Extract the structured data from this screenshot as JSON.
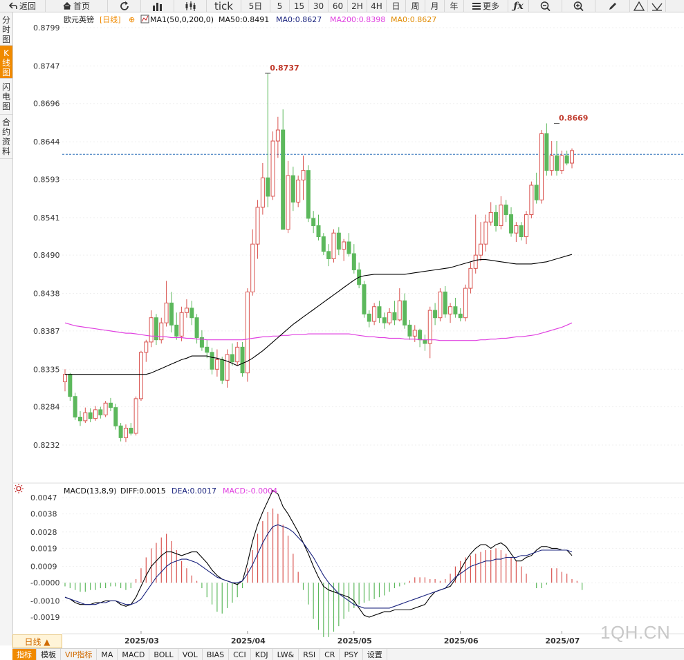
{
  "toolbar": {
    "back_label": "返回",
    "home_label": "首页",
    "tick_label": "tick",
    "five_day_label": "5日",
    "periods": [
      "5",
      "15",
      "30",
      "60",
      "2H",
      "4H",
      "日",
      "周",
      "月",
      "年"
    ],
    "more_label": "更多"
  },
  "sidebar": {
    "tabs": [
      "分时图",
      "K线图",
      "闪电图",
      "合约资料"
    ],
    "active_index": 1
  },
  "header": {
    "symbol": "欧元英镑",
    "period_tag": "[日线]",
    "ma_label": "MA1(50,0,200,0)",
    "ma50": "MA50:0.8491",
    "ma0_a": "MA0:0.8627",
    "ma200": "MA200:0.8398",
    "ma0_b": "MA0:0.8627"
  },
  "macd_header": {
    "label": "MACD(13,8,9)",
    "diff": "DIFF:0.0015",
    "dea": "DEA:0.0017",
    "macd": "MACD:-0.0004"
  },
  "period_bar": {
    "label": "日线 ▲"
  },
  "bottom_tabs": [
    "指标",
    "模板",
    "VIP指标",
    "MA",
    "MACD",
    "BOLL",
    "VOL",
    "BIAS",
    "CCI",
    "KDJ",
    "LW&",
    "RSI",
    "CR",
    "PSY",
    "设置"
  ],
  "bottom_active_index": 0,
  "bottom_vip_index": 2,
  "watermark": "1QH.CN",
  "colors": {
    "up": "#d9534f",
    "down": "#5cb85c",
    "ma50": "#000000",
    "ma200": "#e040e0",
    "diff": "#000000",
    "dea": "#1a237e",
    "dashed": "#2a6fb8",
    "accent": "#f08a00"
  },
  "chart_data": [
    {
      "type": "candlestick",
      "title": "欧元英镑 [日线]",
      "y_ticks": [
        "0.8799",
        "0.8747",
        "0.8696",
        "0.8644",
        "0.8593",
        "0.8541",
        "0.8490",
        "0.8438",
        "0.8387",
        "0.8335",
        "0.8284",
        "0.8232"
      ],
      "ylim": [
        0.8209,
        0.8815
      ],
      "x_labels": [
        "2025/03",
        "2025/04",
        "2025/05",
        "2025/06",
        "2025/07"
      ],
      "last_price": 0.8627,
      "annotations": [
        {
          "text": "0.8737",
          "value": 0.8737,
          "bar": 40
        },
        {
          "text": "0.8669",
          "value": 0.8669,
          "bar": 97
        }
      ],
      "candles": [
        [
          0.8318,
          0.8335,
          0.8305,
          0.8328
        ],
        [
          0.8328,
          0.833,
          0.8292,
          0.8298
        ],
        [
          0.8298,
          0.8303,
          0.8266,
          0.827
        ],
        [
          0.827,
          0.8278,
          0.8258,
          0.8265
        ],
        [
          0.8265,
          0.8283,
          0.8262,
          0.8276
        ],
        [
          0.8276,
          0.8282,
          0.8263,
          0.8268
        ],
        [
          0.8268,
          0.8285,
          0.8265,
          0.828
        ],
        [
          0.828,
          0.8284,
          0.8268,
          0.8273
        ],
        [
          0.8273,
          0.8292,
          0.827,
          0.8289
        ],
        [
          0.8289,
          0.8296,
          0.8278,
          0.8283
        ],
        [
          0.8283,
          0.8288,
          0.8253,
          0.8258
        ],
        [
          0.8258,
          0.8262,
          0.8237,
          0.8242
        ],
        [
          0.8242,
          0.826,
          0.8236,
          0.8255
        ],
        [
          0.8255,
          0.8262,
          0.8245,
          0.8248
        ],
        [
          0.8248,
          0.8298,
          0.8245,
          0.8295
        ],
        [
          0.8295,
          0.836,
          0.8292,
          0.8358
        ],
        [
          0.8358,
          0.8375,
          0.8345,
          0.8372
        ],
        [
          0.8372,
          0.8415,
          0.8365,
          0.8405
        ],
        [
          0.8405,
          0.841,
          0.8368,
          0.8375
        ],
        [
          0.8375,
          0.8405,
          0.837,
          0.8398
        ],
        [
          0.8398,
          0.8455,
          0.8393,
          0.8425
        ],
        [
          0.8425,
          0.844,
          0.8385,
          0.8395
        ],
        [
          0.8395,
          0.8412,
          0.8375,
          0.838
        ],
        [
          0.838,
          0.842,
          0.8373,
          0.8412
        ],
        [
          0.8412,
          0.843,
          0.8405,
          0.8418
        ],
        [
          0.8418,
          0.8428,
          0.8395,
          0.8405
        ],
        [
          0.8405,
          0.841,
          0.837,
          0.8378
        ],
        [
          0.8378,
          0.8388,
          0.836,
          0.8365
        ],
        [
          0.8365,
          0.8375,
          0.835,
          0.8358
        ],
        [
          0.8358,
          0.8364,
          0.8328,
          0.8335
        ],
        [
          0.8335,
          0.8362,
          0.8325,
          0.8348
        ],
        [
          0.8348,
          0.8352,
          0.8315,
          0.832
        ],
        [
          0.832,
          0.8362,
          0.831,
          0.8355
        ],
        [
          0.8355,
          0.837,
          0.834,
          0.8345
        ],
        [
          0.8345,
          0.8372,
          0.834,
          0.8365
        ],
        [
          0.8365,
          0.8372,
          0.8325,
          0.833
        ],
        [
          0.833,
          0.8445,
          0.8318,
          0.844
        ],
        [
          0.844,
          0.8525,
          0.8435,
          0.8505
        ],
        [
          0.8505,
          0.8565,
          0.8485,
          0.8555
        ],
        [
          0.8555,
          0.8615,
          0.8545,
          0.8595
        ],
        [
          0.8595,
          0.8737,
          0.8555,
          0.857
        ],
        [
          0.857,
          0.8658,
          0.8565,
          0.8645
        ],
        [
          0.8645,
          0.8678,
          0.8622,
          0.866
        ],
        [
          0.866,
          0.8688,
          0.8525,
          0.8525
        ],
        [
          0.8525,
          0.8618,
          0.852,
          0.8598
        ],
        [
          0.8598,
          0.861,
          0.855,
          0.8562
        ],
        [
          0.8562,
          0.8598,
          0.8555,
          0.8592
        ],
        [
          0.8592,
          0.8625,
          0.8565,
          0.8605
        ],
        [
          0.8605,
          0.8612,
          0.8535,
          0.854
        ],
        [
          0.854,
          0.855,
          0.852,
          0.853
        ],
        [
          0.853,
          0.8545,
          0.851,
          0.8515
        ],
        [
          0.8515,
          0.852,
          0.849,
          0.8495
        ],
        [
          0.8495,
          0.8505,
          0.8475,
          0.8485
        ],
        [
          0.8485,
          0.8525,
          0.848,
          0.852
        ],
        [
          0.852,
          0.8528,
          0.849,
          0.8498
        ],
        [
          0.8498,
          0.8512,
          0.8482,
          0.8508
        ],
        [
          0.8508,
          0.852,
          0.8488,
          0.8492
        ],
        [
          0.8492,
          0.8505,
          0.8465,
          0.847
        ],
        [
          0.847,
          0.848,
          0.8445,
          0.845
        ],
        [
          0.845,
          0.8455,
          0.8405,
          0.841
        ],
        [
          0.841,
          0.8415,
          0.8392,
          0.84
        ],
        [
          0.84,
          0.8425,
          0.8395,
          0.842
        ],
        [
          0.842,
          0.8428,
          0.8398,
          0.8405
        ],
        [
          0.8405,
          0.8412,
          0.839,
          0.8398
        ],
        [
          0.8398,
          0.8418,
          0.8395,
          0.8412
        ],
        [
          0.8412,
          0.8428,
          0.8395,
          0.8402
        ],
        [
          0.8402,
          0.8445,
          0.84,
          0.8428
        ],
        [
          0.8428,
          0.8438,
          0.839,
          0.8395
        ],
        [
          0.8395,
          0.8402,
          0.8375,
          0.838
        ],
        [
          0.838,
          0.8395,
          0.8372,
          0.8388
        ],
        [
          0.8388,
          0.839,
          0.8365,
          0.8375
        ],
        [
          0.8375,
          0.8382,
          0.836,
          0.837
        ],
        [
          0.837,
          0.842,
          0.835,
          0.8415
        ],
        [
          0.8415,
          0.8425,
          0.8395,
          0.8405
        ],
        [
          0.8405,
          0.8445,
          0.84,
          0.844
        ],
        [
          0.844,
          0.8448,
          0.8405,
          0.841
        ],
        [
          0.841,
          0.8425,
          0.8398,
          0.842
        ],
        [
          0.842,
          0.8432,
          0.8405,
          0.841
        ],
        [
          0.841,
          0.8418,
          0.84,
          0.8405
        ],
        [
          0.8405,
          0.845,
          0.84,
          0.8445
        ],
        [
          0.8445,
          0.848,
          0.8438,
          0.8472
        ],
        [
          0.8472,
          0.8545,
          0.8465,
          0.849
        ],
        [
          0.849,
          0.8535,
          0.8482,
          0.8505
        ],
        [
          0.8505,
          0.8545,
          0.8495,
          0.8535
        ],
        [
          0.8535,
          0.8562,
          0.853,
          0.8548
        ],
        [
          0.8548,
          0.8558,
          0.8522,
          0.853
        ],
        [
          0.853,
          0.857,
          0.8525,
          0.8558
        ],
        [
          0.8558,
          0.8565,
          0.8535,
          0.8545
        ],
        [
          0.8545,
          0.8555,
          0.8515,
          0.852
        ],
        [
          0.852,
          0.8535,
          0.8508,
          0.853
        ],
        [
          0.853,
          0.8535,
          0.851,
          0.8515
        ],
        [
          0.8515,
          0.855,
          0.8505,
          0.8545
        ],
        [
          0.8545,
          0.859,
          0.854,
          0.8585
        ],
        [
          0.8585,
          0.8602,
          0.856,
          0.8565
        ],
        [
          0.8565,
          0.866,
          0.856,
          0.8655
        ],
        [
          0.8655,
          0.8669,
          0.8598,
          0.8605
        ],
        [
          0.8605,
          0.8645,
          0.8598,
          0.8625
        ],
        [
          0.8625,
          0.8645,
          0.8598,
          0.8605
        ],
        [
          0.8605,
          0.8632,
          0.86,
          0.8625
        ],
        [
          0.8625,
          0.8632,
          0.8612,
          0.8615
        ],
        [
          0.8615,
          0.8635,
          0.8608,
          0.8632
        ]
      ],
      "ma50": [
        0.8328,
        0.8328,
        0.8328,
        0.8328,
        0.8328,
        0.8328,
        0.8328,
        0.8328,
        0.8328,
        0.8328,
        0.8328,
        0.8328,
        0.8328,
        0.8328,
        0.8328,
        0.8328,
        0.8328,
        0.833,
        0.8333,
        0.8336,
        0.8339,
        0.8342,
        0.8345,
        0.8348,
        0.835,
        0.8353,
        0.8353,
        0.8353,
        0.8353,
        0.8351,
        0.835,
        0.8348,
        0.8346,
        0.8343,
        0.834,
        0.8343,
        0.8346,
        0.835,
        0.8355,
        0.836,
        0.8366,
        0.8372,
        0.8378,
        0.8384,
        0.839,
        0.8396,
        0.8401,
        0.8406,
        0.8411,
        0.8416,
        0.8421,
        0.8426,
        0.8431,
        0.8436,
        0.8441,
        0.8446,
        0.8451,
        0.8456,
        0.846,
        0.8462,
        0.8463,
        0.8464,
        0.8464,
        0.8464,
        0.8464,
        0.8464,
        0.8464,
        0.8464,
        0.8465,
        0.8466,
        0.8467,
        0.8468,
        0.8469,
        0.847,
        0.8471,
        0.8472,
        0.8473,
        0.8475,
        0.8477,
        0.8479,
        0.8481,
        0.8483,
        0.8484,
        0.8484,
        0.8483,
        0.8482,
        0.8481,
        0.848,
        0.8479,
        0.8478,
        0.8478,
        0.8478,
        0.8478,
        0.8479,
        0.848,
        0.8481,
        0.8483,
        0.8485,
        0.8487,
        0.8489,
        0.8491
      ],
      "ma200": [
        0.8398,
        0.8396,
        0.8394,
        0.8393,
        0.8392,
        0.8391,
        0.839,
        0.8389,
        0.8388,
        0.8387,
        0.8386,
        0.8385,
        0.8384,
        0.8384,
        0.8383,
        0.8382,
        0.8381,
        0.838,
        0.838,
        0.8379,
        0.8379,
        0.8378,
        0.8378,
        0.8378,
        0.8377,
        0.8377,
        0.8376,
        0.8376,
        0.8375,
        0.8375,
        0.8375,
        0.8375,
        0.8375,
        0.8375,
        0.8375,
        0.8375,
        0.8376,
        0.8377,
        0.8378,
        0.8379,
        0.8379,
        0.838,
        0.838,
        0.8381,
        0.8381,
        0.8382,
        0.8382,
        0.8382,
        0.8383,
        0.8383,
        0.8383,
        0.8383,
        0.8383,
        0.8383,
        0.8383,
        0.8383,
        0.8383,
        0.8382,
        0.8381,
        0.838,
        0.8379,
        0.8379,
        0.8378,
        0.8378,
        0.8377,
        0.8377,
        0.8377,
        0.8376,
        0.8376,
        0.8376,
        0.8375,
        0.8375,
        0.8375,
        0.8375,
        0.8374,
        0.8374,
        0.8374,
        0.8374,
        0.8374,
        0.8374,
        0.8374,
        0.8374,
        0.8375,
        0.8375,
        0.8376,
        0.8376,
        0.8377,
        0.8377,
        0.8378,
        0.8379,
        0.8379,
        0.838,
        0.8381,
        0.8382,
        0.8384,
        0.8386,
        0.8388,
        0.839,
        0.8392,
        0.8395,
        0.8398
      ]
    },
    {
      "type": "bar",
      "title": "MACD(13,8,9)",
      "y_ticks": [
        "0.0047",
        "0.0038",
        "0.0028",
        "0.0019",
        "0.0009",
        "-0.0000",
        "-0.0010",
        "-0.0019"
      ],
      "ylim": [
        -0.0027,
        0.0052
      ],
      "macd": [
        -0.0002,
        -0.0003,
        -0.0004,
        -0.0005,
        -0.0005,
        -0.0004,
        -0.0004,
        -0.0003,
        -0.0003,
        -0.0002,
        -0.0002,
        -0.0003,
        -0.0004,
        -0.0003,
        0.0002,
        0.0008,
        0.0014,
        0.0019,
        0.0022,
        0.0025,
        0.0027,
        0.0023,
        0.0018,
        0.0012,
        0.0008,
        0.0004,
        0.0001,
        -0.0003,
        -0.0008,
        -0.0012,
        -0.0016,
        -0.0017,
        -0.0014,
        -0.0011,
        -0.0008,
        -0.0003,
        0.0008,
        0.0018,
        0.0027,
        0.0034,
        0.0039,
        0.0041,
        0.0038,
        0.0032,
        0.0026,
        0.0016,
        0.0006,
        -0.0004,
        -0.0012,
        -0.002,
        -0.0026,
        -0.003,
        -0.003,
        -0.0027,
        -0.0024,
        -0.002,
        -0.0016,
        -0.0014,
        -0.0012,
        -0.0011,
        -0.001,
        -0.0009,
        -0.0008,
        -0.0007,
        -0.0005,
        -0.0003,
        -0.0002,
        -0.0001,
        0.0001,
        0.0003,
        0.0003,
        0.0003,
        0.0002,
        0.0002,
        0.0001,
        0.0002,
        0.0005,
        0.0009,
        0.0012,
        0.0014,
        0.0015,
        0.0016,
        0.0017,
        0.0018,
        0.0018,
        0.0019,
        0.0018,
        0.0016,
        0.0014,
        0.0012,
        0.0009,
        0.0005,
        0.0,
        -0.0003,
        -0.0003,
        -0.0001,
        0.0008,
        0.0008,
        0.0006,
        0.0005,
        0.0002,
        0.0001,
        -0.0004
      ],
      "diff": [
        -0.0008,
        -0.0009,
        -0.0011,
        -0.0012,
        -0.0012,
        -0.0012,
        -0.0011,
        -0.0011,
        -0.001,
        -0.001,
        -0.001,
        -0.0012,
        -0.0013,
        -0.0012,
        -0.0008,
        -0.0002,
        0.0004,
        0.0009,
        0.0012,
        0.0015,
        0.0017,
        0.0017,
        0.0016,
        0.0015,
        0.0016,
        0.0017,
        0.0017,
        0.0014,
        0.0011,
        0.0007,
        0.0004,
        0.0002,
        0.0001,
        0.0,
        -0.0001,
        0.0001,
        0.0011,
        0.0023,
        0.0032,
        0.0039,
        0.0045,
        0.0051,
        0.0049,
        0.0042,
        0.0038,
        0.0033,
        0.0028,
        0.0022,
        0.0016,
        0.0009,
        0.0003,
        -0.0002,
        -0.0004,
        -0.0005,
        -0.0006,
        -0.0007,
        -0.0008,
        -0.001,
        -0.0014,
        -0.0018,
        -0.0019,
        -0.0018,
        -0.0017,
        -0.0016,
        -0.0016,
        -0.0015,
        -0.0015,
        -0.0015,
        -0.0015,
        -0.0014,
        -0.0013,
        -0.0012,
        -0.0008,
        -0.0005,
        -0.0004,
        -0.0003,
        -0.0002,
        0.0002,
        0.0007,
        0.0012,
        0.0016,
        0.0019,
        0.0021,
        0.0021,
        0.0019,
        0.0021,
        0.0022,
        0.002,
        0.0016,
        0.0012,
        0.0012,
        0.0014,
        0.0015,
        0.0018,
        0.002,
        0.002,
        0.0019,
        0.0019,
        0.0018,
        0.0018,
        0.0015
      ],
      "dea": [
        -0.0008,
        -0.0009,
        -0.001,
        -0.0011,
        -0.0012,
        -0.0012,
        -0.0012,
        -0.0011,
        -0.0011,
        -0.001,
        -0.001,
        -0.0011,
        -0.0012,
        -0.0012,
        -0.0011,
        -0.0009,
        -0.0005,
        -0.0001,
        0.0003,
        0.0006,
        0.0009,
        0.0011,
        0.0012,
        0.0013,
        0.0013,
        0.0012,
        0.0011,
        0.0009,
        0.0007,
        0.0005,
        0.0003,
        0.0002,
        0.0001,
        0.0,
        0.0,
        0.0001,
        0.0005,
        0.001,
        0.0016,
        0.0022,
        0.0027,
        0.0031,
        0.0032,
        0.0031,
        0.003,
        0.0028,
        0.0025,
        0.0022,
        0.0018,
        0.0014,
        0.0009,
        0.0004,
        0.0,
        -0.0003,
        -0.0006,
        -0.0008,
        -0.001,
        -0.0012,
        -0.0013,
        -0.0014,
        -0.0014,
        -0.0014,
        -0.0014,
        -0.0014,
        -0.0014,
        -0.0013,
        -0.0012,
        -0.0011,
        -0.001,
        -0.0009,
        -0.0008,
        -0.0007,
        -0.0006,
        -0.0005,
        -0.0004,
        -0.0003,
        0.0,
        0.0003,
        0.0005,
        0.0007,
        0.0009,
        0.001,
        0.0011,
        0.0012,
        0.0012,
        0.0013,
        0.0013,
        0.0014,
        0.0014,
        0.0014,
        0.0015,
        0.0015,
        0.0016,
        0.0017,
        0.0018,
        0.0018,
        0.0018,
        0.0018,
        0.0018,
        0.0018,
        0.0017
      ]
    }
  ]
}
